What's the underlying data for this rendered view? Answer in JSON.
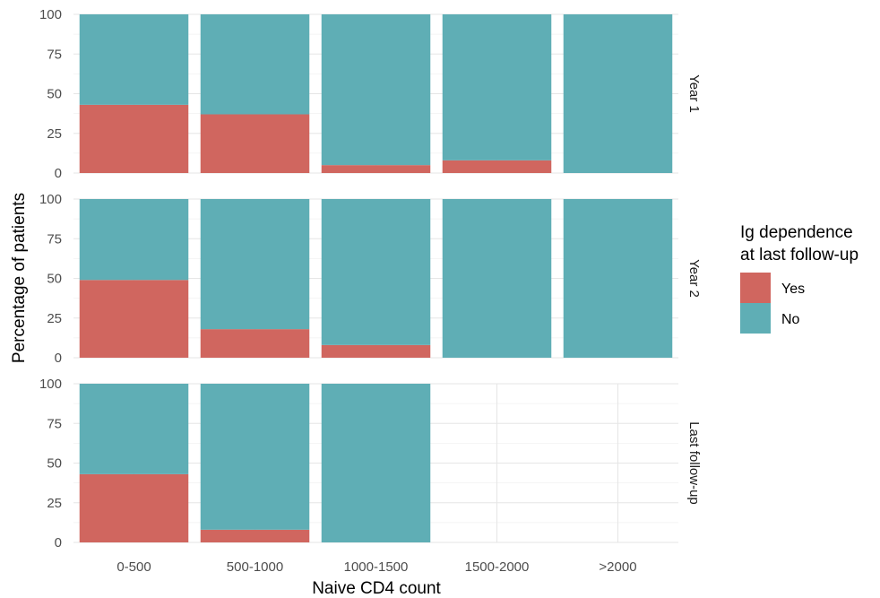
{
  "chart_data": {
    "type": "bar",
    "stacked": true,
    "xlabel": "Naive CD4 count",
    "ylabel": "Percentage of patients",
    "ylim": [
      0,
      100
    ],
    "yticks": [
      0,
      25,
      50,
      75,
      100
    ],
    "categories": [
      "0-500",
      "500-1000",
      "1000-1500",
      "1500-2000",
      ">2000"
    ],
    "legend": {
      "title_lines": [
        "Ig dependence",
        "at last follow-up"
      ],
      "position": "right",
      "entries": [
        {
          "name": "Yes",
          "color": "#D0665F"
        },
        {
          "name": "No",
          "color": "#5FAEB5"
        }
      ]
    },
    "grid": true,
    "facets": [
      {
        "label": "Year 1",
        "yes": [
          43,
          37,
          5,
          8,
          0
        ],
        "no": [
          57,
          63,
          95,
          92,
          100
        ]
      },
      {
        "label": "Year 2",
        "yes": [
          49,
          18,
          8,
          0,
          0
        ],
        "no": [
          51,
          82,
          92,
          100,
          100
        ]
      },
      {
        "label": "Last follow-up",
        "yes": [
          43,
          8,
          0,
          null,
          null
        ],
        "no": [
          57,
          92,
          100,
          null,
          null
        ]
      }
    ]
  }
}
